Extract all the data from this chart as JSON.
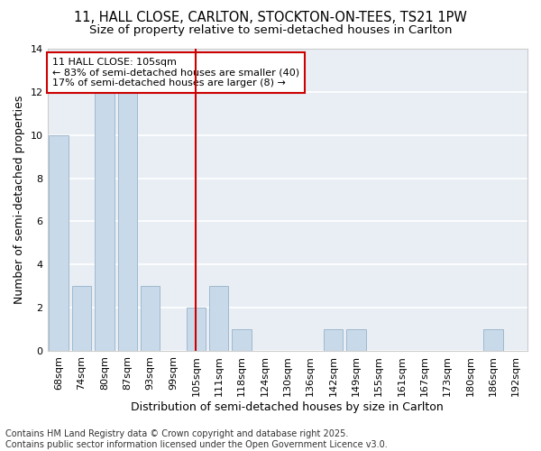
{
  "title1": "11, HALL CLOSE, CARLTON, STOCKTON-ON-TEES, TS21 1PW",
  "title2": "Size of property relative to semi-detached houses in Carlton",
  "categories": [
    "68sqm",
    "74sqm",
    "80sqm",
    "87sqm",
    "93sqm",
    "99sqm",
    "105sqm",
    "111sqm",
    "118sqm",
    "124sqm",
    "130sqm",
    "136sqm",
    "142sqm",
    "149sqm",
    "155sqm",
    "161sqm",
    "167sqm",
    "173sqm",
    "180sqm",
    "186sqm",
    "192sqm"
  ],
  "values": [
    10,
    3,
    12,
    12,
    3,
    0,
    2,
    3,
    1,
    0,
    0,
    0,
    1,
    1,
    0,
    0,
    0,
    0,
    0,
    1,
    0
  ],
  "bar_color": "#c8daea",
  "bar_edge_color": "#a0b8cc",
  "highlight_index": 6,
  "highlight_line_color": "#cc0000",
  "ylabel": "Number of semi-detached properties",
  "xlabel": "Distribution of semi-detached houses by size in Carlton",
  "ylim": [
    0,
    14
  ],
  "yticks": [
    0,
    2,
    4,
    6,
    8,
    10,
    12,
    14
  ],
  "annotation_title": "11 HALL CLOSE: 105sqm",
  "annotation_line1": "← 83% of semi-detached houses are smaller (40)",
  "annotation_line2": "17% of semi-detached houses are larger (8) →",
  "annotation_box_color": "#cc0000",
  "annotation_text_color": "#000000",
  "annotation_bg_color": "#ffffff",
  "footer1": "Contains HM Land Registry data © Crown copyright and database right 2025.",
  "footer2": "Contains public sector information licensed under the Open Government Licence v3.0.",
  "background_color": "#ffffff",
  "plot_bg_color": "#e8eef4",
  "grid_color": "#ffffff",
  "title_fontsize": 10.5,
  "subtitle_fontsize": 9.5,
  "axis_label_fontsize": 9,
  "tick_fontsize": 8,
  "annotation_fontsize": 8,
  "footer_fontsize": 7
}
